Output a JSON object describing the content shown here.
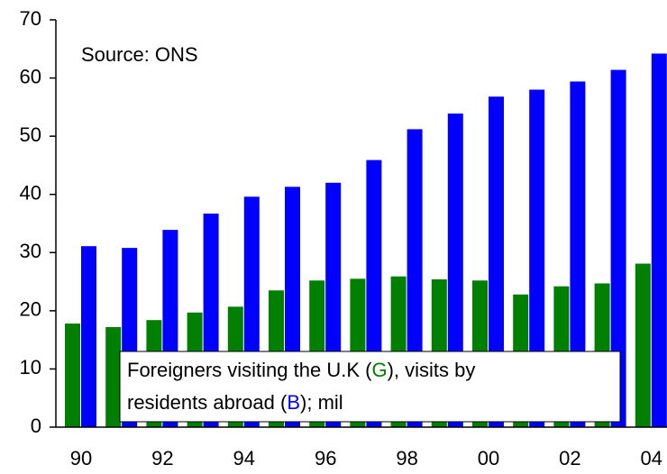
{
  "chart_data": {
    "type": "bar",
    "annotations": [
      "Source: ONS"
    ],
    "note_lines": [
      [
        "Foreigners visiting the U.K (",
        "G",
        "), visits by"
      ],
      [
        "residents abroad (",
        "B",
        "); mil"
      ]
    ],
    "categories": [
      "90",
      null,
      "92",
      null,
      "94",
      null,
      "96",
      null,
      "98",
      null,
      "00",
      null,
      "02",
      null,
      "04"
    ],
    "series": [
      {
        "color": "#007f00",
        "values": [
          17.8,
          17.2,
          18.4,
          19.7,
          20.7,
          23.5,
          25.2,
          25.5,
          25.9,
          25.4,
          25.2,
          22.8,
          24.2,
          24.7,
          28.1
        ]
      },
      {
        "color": "#0000ff",
        "values": [
          31.1,
          30.8,
          33.9,
          36.7,
          39.6,
          41.3,
          42.0,
          45.9,
          51.2,
          53.9,
          56.8,
          58.0,
          59.4,
          61.4,
          64.2
        ]
      }
    ],
    "ylim": [
      0,
      70
    ],
    "yticks": [
      0,
      10,
      20,
      30,
      40,
      50,
      60,
      70
    ],
    "grid": false
  }
}
